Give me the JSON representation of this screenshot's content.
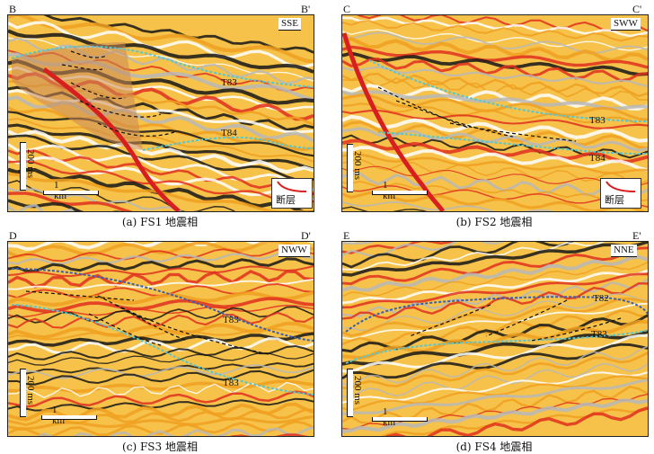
{
  "colors": {
    "background_yellow": "#f6c24a",
    "peak_red": "#e0301e",
    "trough_black": "#161616",
    "gray_mid": "#b8b8b8",
    "fault_red": "#d81f1f",
    "horizon_cyan": "#56c6d2",
    "horizon_blue": "#3a5fb0",
    "facies_fill": "#c98a5a"
  },
  "panels": [
    {
      "id": "a",
      "left_label": "B",
      "right_label": "B'",
      "direction": "SSE",
      "horizons": [
        "T83",
        "T84"
      ],
      "time_scale": "200 ms",
      "distance_scale": "1 km",
      "legend_label": "断层",
      "caption": "(a) FS1 地震相"
    },
    {
      "id": "b",
      "left_label": "C",
      "right_label": "C'",
      "direction": "SWW",
      "horizons": [
        "T83",
        "T84"
      ],
      "time_scale": "200 ms",
      "distance_scale": "1 km",
      "legend_label": "断层",
      "caption": "(b) FS2 地震相"
    },
    {
      "id": "c",
      "left_label": "D",
      "right_label": "D'",
      "direction": "NWW",
      "horizons": [
        "T83",
        "T83"
      ],
      "time_scale": "200 ms",
      "distance_scale": "1 km",
      "caption": "(c) FS3 地震相"
    },
    {
      "id": "d",
      "left_label": "E",
      "right_label": "E'",
      "direction": "NNE",
      "horizons": [
        "T82",
        "T83"
      ],
      "time_scale": "200 ms",
      "distance_scale": "1 km",
      "caption": "(d) FS4 地震相"
    }
  ]
}
